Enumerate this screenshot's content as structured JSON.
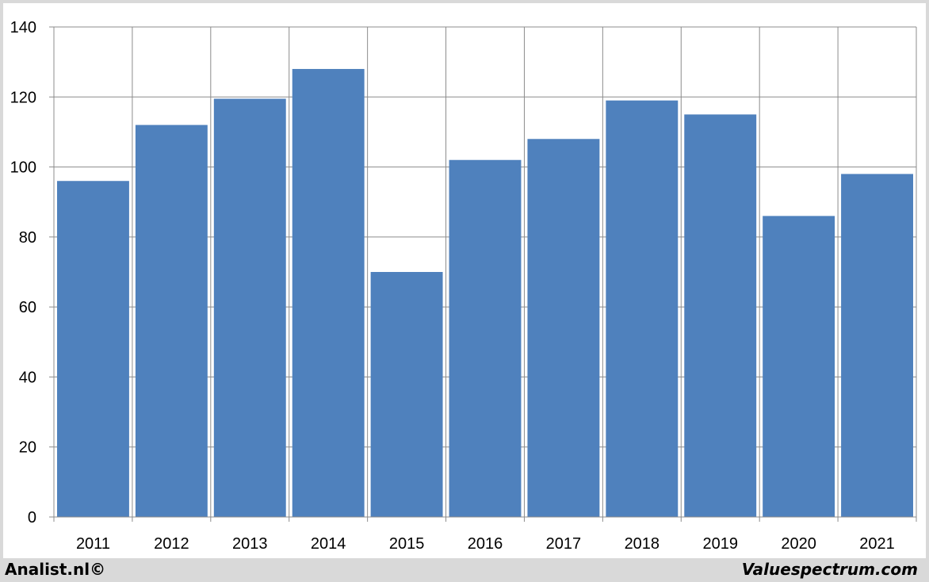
{
  "chart_data": {
    "type": "bar",
    "categories": [
      "2011",
      "2012",
      "2013",
      "2014",
      "2015",
      "2016",
      "2017",
      "2018",
      "2019",
      "2020",
      "2021"
    ],
    "values": [
      96,
      112,
      119.5,
      128,
      70,
      102,
      108,
      119,
      115,
      86,
      98
    ],
    "ylim": [
      0,
      140
    ],
    "yticks": [
      0,
      20,
      40,
      60,
      80,
      100,
      120,
      140
    ],
    "grid": true,
    "bar_color": "#4f81bd",
    "title": "",
    "xlabel": "",
    "ylabel": ""
  },
  "footer": {
    "left": "Analist.nl©",
    "right": "Valuespectrum.com"
  }
}
